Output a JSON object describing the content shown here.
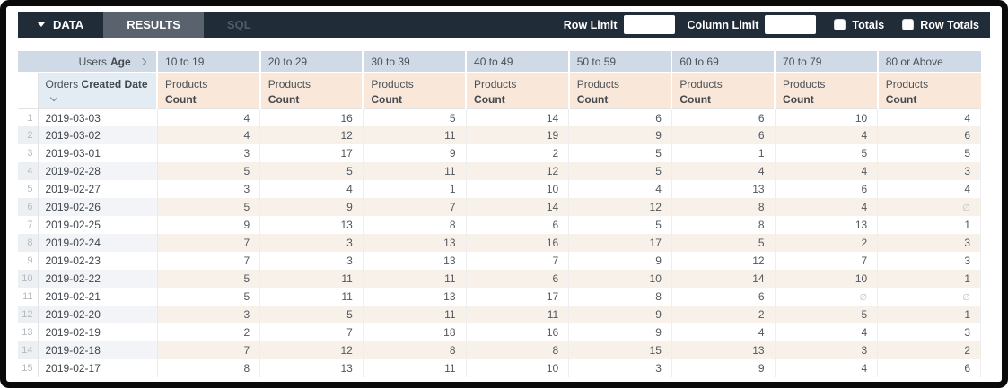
{
  "toolbar": {
    "data_tab": "DATA",
    "results_tab": "RESULTS",
    "sql_tab": "SQL",
    "row_limit_label": "Row Limit",
    "row_limit_value": "",
    "column_limit_label": "Column Limit",
    "column_limit_value": "",
    "totals_label": "Totals",
    "totals_checked": false,
    "row_totals_label": "Row Totals",
    "row_totals_checked": false
  },
  "table": {
    "pivot_field": {
      "view": "Users",
      "field": "Age"
    },
    "row_field": {
      "view": "Orders",
      "field": "Created Date"
    },
    "measure": {
      "view": "Products",
      "field": "Count"
    },
    "columns": [
      "10 to 19",
      "20 to 29",
      "30 to 39",
      "40 to 49",
      "50 to 59",
      "60 to 69",
      "70 to 79",
      "80 or Above"
    ],
    "null_symbol": "∅",
    "rows": [
      {
        "index": 1,
        "date": "2019-03-03",
        "values": [
          4,
          16,
          5,
          14,
          6,
          6,
          10,
          4
        ]
      },
      {
        "index": 2,
        "date": "2019-03-02",
        "values": [
          4,
          12,
          11,
          19,
          9,
          6,
          4,
          6
        ]
      },
      {
        "index": 3,
        "date": "2019-03-01",
        "values": [
          3,
          17,
          9,
          2,
          5,
          1,
          5,
          5
        ]
      },
      {
        "index": 4,
        "date": "2019-02-28",
        "values": [
          5,
          5,
          11,
          12,
          5,
          4,
          4,
          3
        ]
      },
      {
        "index": 5,
        "date": "2019-02-27",
        "values": [
          3,
          4,
          1,
          10,
          4,
          13,
          6,
          4
        ]
      },
      {
        "index": 6,
        "date": "2019-02-26",
        "values": [
          5,
          9,
          7,
          14,
          12,
          8,
          4,
          null
        ]
      },
      {
        "index": 7,
        "date": "2019-02-25",
        "values": [
          9,
          13,
          8,
          6,
          5,
          8,
          13,
          1
        ]
      },
      {
        "index": 8,
        "date": "2019-02-24",
        "values": [
          7,
          3,
          13,
          16,
          17,
          5,
          2,
          3
        ]
      },
      {
        "index": 9,
        "date": "2019-02-23",
        "values": [
          7,
          3,
          13,
          7,
          9,
          12,
          7,
          3
        ]
      },
      {
        "index": 10,
        "date": "2019-02-22",
        "values": [
          5,
          11,
          11,
          6,
          10,
          14,
          10,
          1
        ]
      },
      {
        "index": 11,
        "date": "2019-02-21",
        "values": [
          5,
          11,
          13,
          17,
          8,
          6,
          null,
          null
        ]
      },
      {
        "index": 12,
        "date": "2019-02-20",
        "values": [
          3,
          5,
          11,
          11,
          9,
          2,
          5,
          1
        ]
      },
      {
        "index": 13,
        "date": "2019-02-19",
        "values": [
          2,
          7,
          18,
          16,
          9,
          4,
          4,
          3
        ]
      },
      {
        "index": 14,
        "date": "2019-02-18",
        "values": [
          7,
          12,
          8,
          8,
          15,
          13,
          3,
          2
        ]
      },
      {
        "index": 15,
        "date": "2019-02-17",
        "values": [
          8,
          13,
          11,
          10,
          3,
          9,
          4,
          6
        ]
      }
    ]
  },
  "colors": {
    "topbar_bg": "#212c39",
    "active_tab_bg": "#59626d",
    "pivot_header_blue": "#cfdae6",
    "row_field_blue": "#e3ebf3",
    "measure_header_peach": "#f9e8d9",
    "stripe_peach": "#f8f1ea"
  }
}
